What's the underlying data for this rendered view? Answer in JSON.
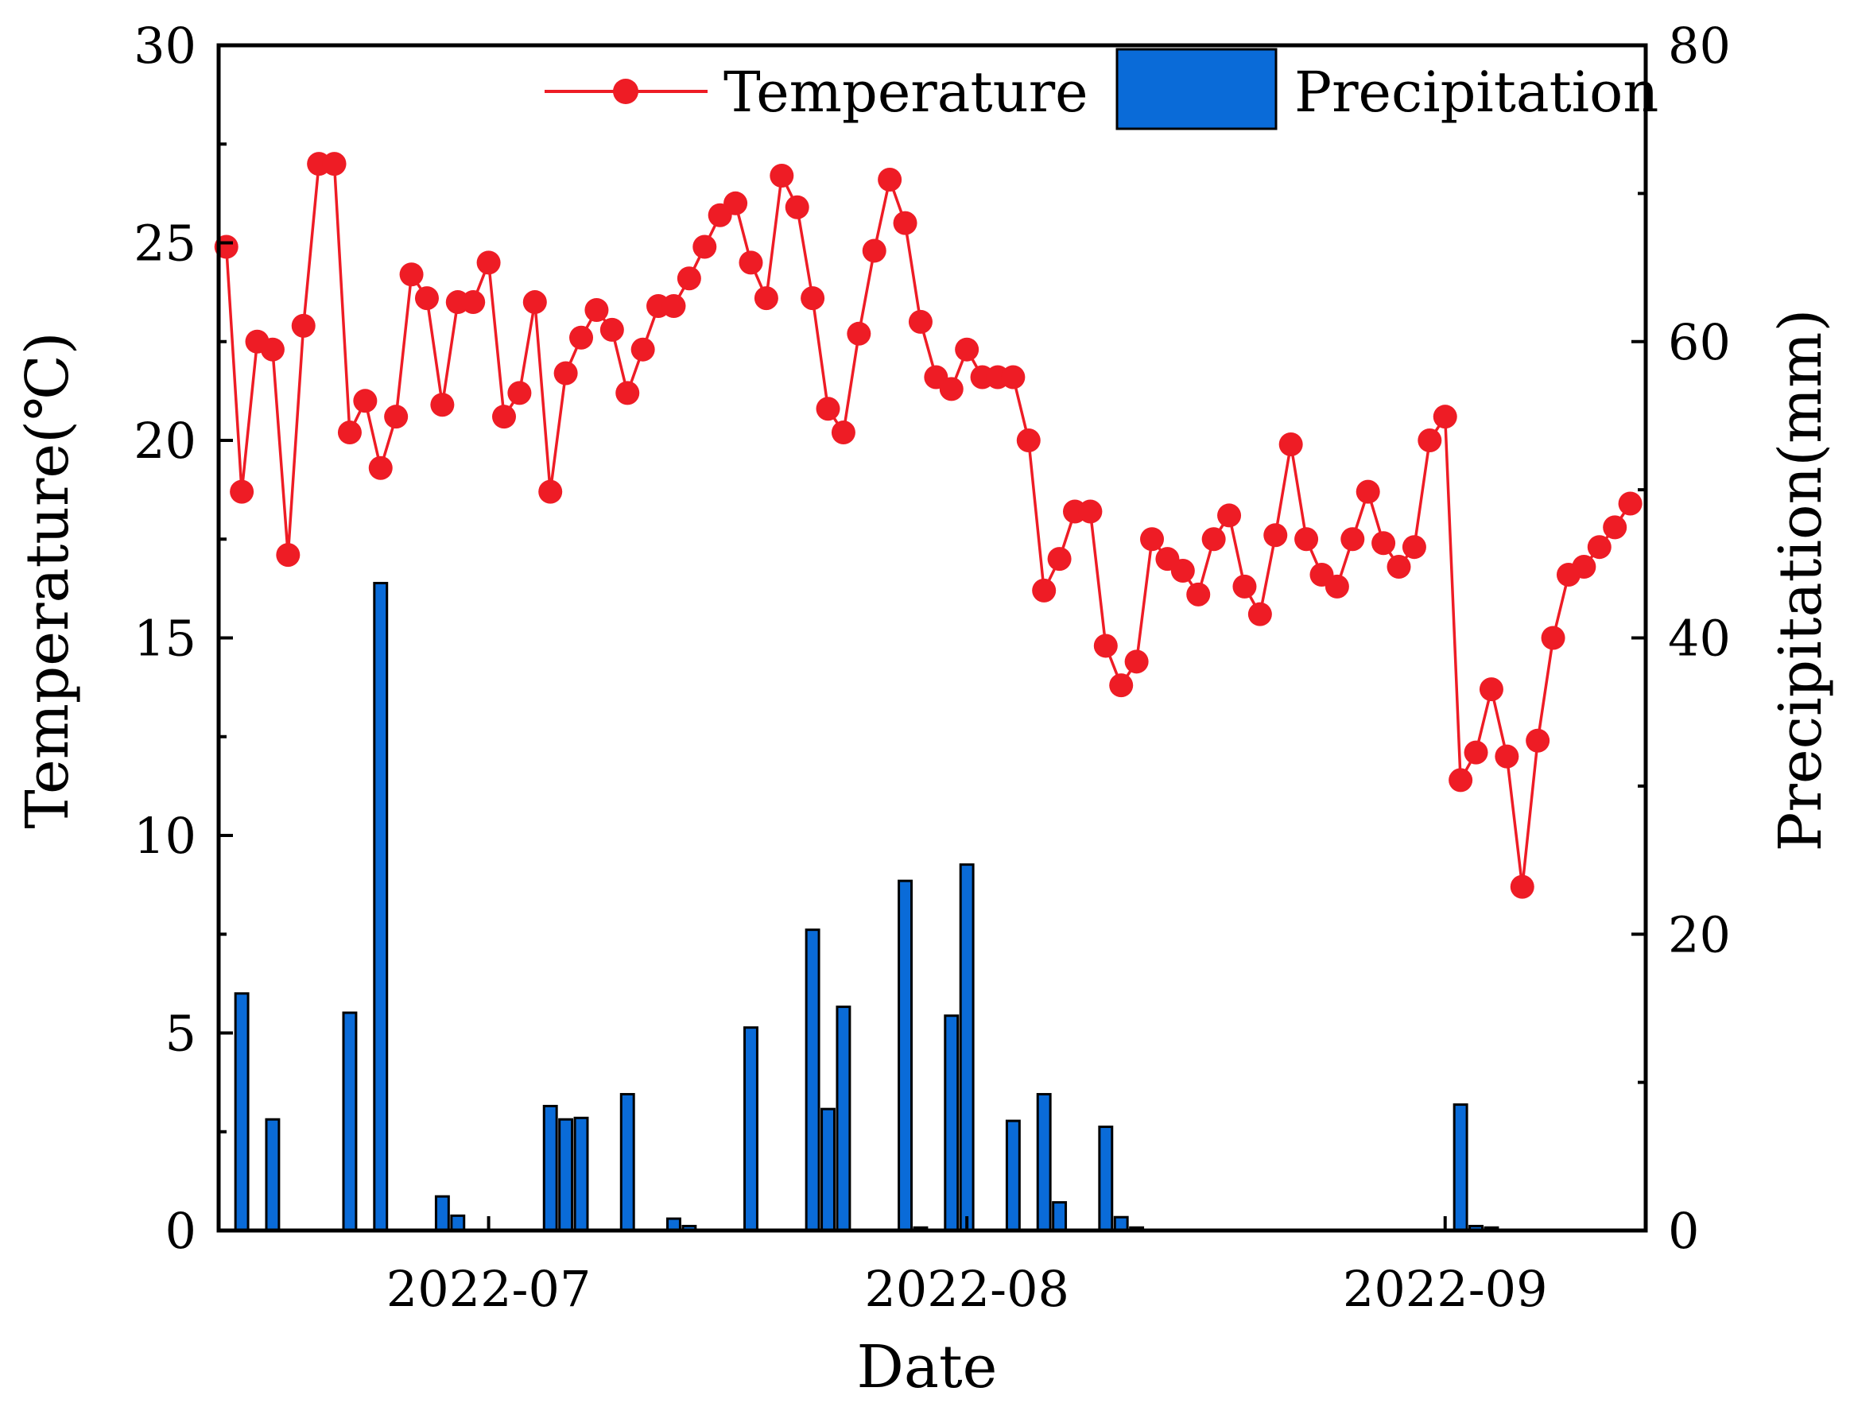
{
  "chart_data": {
    "type": "bar+line",
    "title": "",
    "xlabel": "Date",
    "ylabel_left": "Temperature(℃)",
    "ylabel_right": "Precipitation(mm)",
    "ylim_left": [
      0,
      30
    ],
    "ylim_right": [
      0,
      80
    ],
    "yticks_left": [
      "0",
      "5",
      "10",
      "15",
      "20",
      "25",
      "30"
    ],
    "yticks_right": [
      "0",
      "20",
      "40",
      "60",
      "80"
    ],
    "xticks": [
      {
        "day": 17,
        "label": "2022-07"
      },
      {
        "day": 48,
        "label": "2022-08"
      },
      {
        "day": 79,
        "label": "2022-09"
      }
    ],
    "day_range": [
      -0.5,
      92
    ],
    "legend": {
      "placement": "top-right",
      "temperature_label": "Temperature",
      "precipitation_label": "Precipitation"
    },
    "colors": {
      "temperature": "#ee1c25",
      "precipitation": "#0a6bd8",
      "bar_edge": "#000000"
    },
    "series": [
      {
        "name": "Temperature",
        "axis": "left",
        "type": "line",
        "values": [
          24.9,
          18.7,
          22.5,
          22.3,
          17.1,
          22.9,
          27.0,
          27.0,
          20.2,
          21.0,
          19.3,
          20.6,
          24.2,
          23.6,
          20.9,
          23.5,
          23.5,
          24.5,
          20.6,
          21.2,
          23.5,
          18.7,
          21.7,
          22.6,
          23.3,
          22.8,
          21.2,
          22.3,
          23.4,
          23.4,
          24.1,
          24.9,
          25.7,
          26.0,
          24.5,
          23.6,
          26.7,
          25.9,
          23.6,
          20.8,
          20.2,
          22.7,
          24.8,
          26.6,
          25.5,
          23.0,
          21.6,
          21.3,
          22.3,
          21.6,
          21.6,
          21.6,
          20.0,
          16.2,
          17.0,
          18.2,
          18.2,
          14.8,
          13.8,
          14.4,
          17.5,
          17.0,
          16.7,
          16.1,
          17.5,
          18.1,
          16.3,
          15.6,
          17.6,
          19.9,
          17.5,
          16.6,
          16.3,
          17.5,
          18.7,
          17.4,
          16.8,
          17.3,
          20.0,
          20.6,
          11.4,
          12.1,
          13.7,
          12.0,
          8.7,
          12.4,
          15.0,
          16.6,
          16.8,
          17.3,
          17.8,
          18.4
        ]
      },
      {
        "name": "Precipitation",
        "axis": "right",
        "type": "bar",
        "days": [
          1,
          3,
          8,
          10,
          14,
          15,
          21,
          22,
          23,
          26,
          29,
          30,
          34,
          38,
          39,
          40,
          44,
          45,
          47,
          48,
          51,
          53,
          54,
          57,
          58,
          59,
          80,
          81,
          82
        ],
        "values": [
          16.0,
          7.5,
          14.7,
          43.7,
          2.3,
          1.0,
          8.4,
          7.5,
          7.6,
          9.2,
          0.8,
          0.3,
          13.7,
          20.3,
          8.2,
          15.1,
          23.6,
          0.2,
          14.5,
          24.7,
          7.4,
          9.2,
          1.9,
          7.0,
          0.9,
          0.2,
          8.5,
          0.3,
          0.2
        ]
      }
    ]
  }
}
